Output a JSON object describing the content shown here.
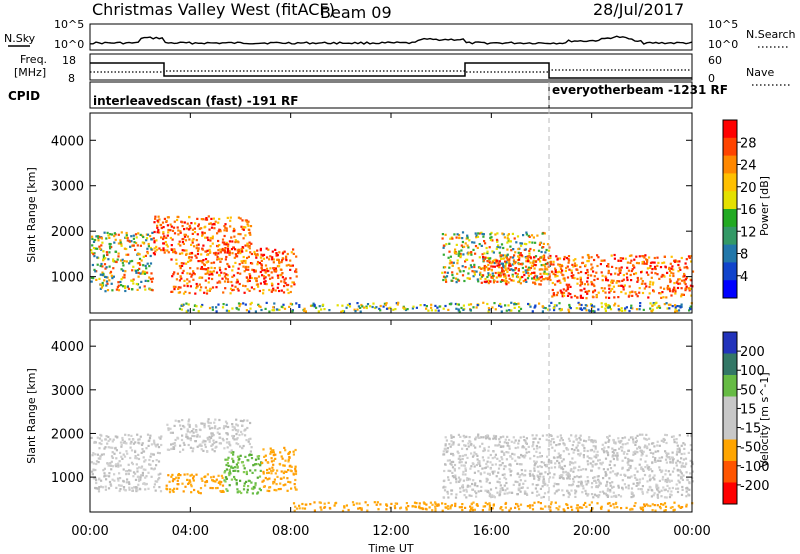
{
  "header": {
    "station": "Christmas Valley West (fitACF)",
    "beam": "Beam 09",
    "date": "28/Jul/2017"
  },
  "strip_labels": {
    "nsky": "N.Sky",
    "nsearch": "N.Search",
    "freq_line1": "Freq.",
    "freq_line2": "[MHz]",
    "nave": "Nave",
    "cpid": "CPID",
    "nsky_tick_hi": "10^5",
    "nsky_tick_lo": "10^0",
    "nsearch_tick_hi": "10^5",
    "nsearch_tick_lo": "10^0",
    "freq_tick_hi": "18",
    "freq_tick_lo": "8",
    "nave_tick_hi": "60",
    "nave_tick_lo": "0"
  },
  "cpid_modes": [
    {
      "label": "interleavedscan (fast) -191 RF",
      "start_hour": 0,
      "end_hour": 18.3
    },
    {
      "label": "everyotherbeam -1231 RF",
      "start_hour": 18.3,
      "end_hour": 24
    }
  ],
  "chart_data": [
    {
      "type": "heatmap",
      "title": "",
      "quantity": "Power",
      "colorbar_label": "Power [dB]",
      "colorbar_ticks": [
        "28",
        "24",
        "20",
        "16",
        "12",
        "8",
        "4"
      ],
      "colorbar_colors": [
        "#ff0000",
        "#ff4400",
        "#ff8800",
        "#ffc000",
        "#e4e000",
        "#22aa22",
        "#339966",
        "#2277aa",
        "#1144cc",
        "#0000ff"
      ],
      "ylabel": "Slant Range [km]",
      "yticks": [
        "4000",
        "3000",
        "2000",
        "1000"
      ],
      "ylim": [
        200,
        4600
      ],
      "xlim_hours": [
        0,
        24
      ],
      "xticks": [
        "00:00",
        "04:00",
        "08:00",
        "12:00",
        "16:00",
        "20:00",
        "00:00"
      ],
      "scatter_regions": [
        {
          "t0": 0.0,
          "t1": 2.5,
          "r0": 700,
          "r1": 2000,
          "level": "medium"
        },
        {
          "t0": 2.5,
          "t1": 6.4,
          "r0": 1500,
          "r1": 2350,
          "level": "high"
        },
        {
          "t0": 3.2,
          "t1": 8.2,
          "r0": 650,
          "r1": 1650,
          "level": "high"
        },
        {
          "t0": 14.0,
          "t1": 18.3,
          "r0": 900,
          "r1": 2000,
          "level": "medium"
        },
        {
          "t0": 15.5,
          "t1": 18.3,
          "r0": 850,
          "r1": 1500,
          "level": "high"
        },
        {
          "t0": 18.3,
          "t1": 24.0,
          "r0": 550,
          "r1": 1500,
          "level": "high"
        },
        {
          "t0": 3.5,
          "t1": 24.0,
          "r0": 250,
          "r1": 450,
          "level": "low"
        }
      ]
    },
    {
      "type": "heatmap",
      "title": "",
      "quantity": "Velocity",
      "colorbar_label": "Velocity [m s^-1]",
      "colorbar_ticks": [
        "200",
        "100",
        "50",
        "15",
        "-15",
        "-50",
        "-100",
        "-200"
      ],
      "colorbar_colors": [
        "#2233bb",
        "#337766",
        "#66bb44",
        "#c8c8c8",
        "#c8c8c8",
        "#ffa500",
        "#ff5500",
        "#ff0000"
      ],
      "ylabel": "Slant Range [km]",
      "yticks": [
        "4000",
        "3000",
        "2000",
        "1000"
      ],
      "ylim": [
        200,
        4600
      ],
      "xlim_hours": [
        0,
        24
      ],
      "xticks": [
        "00:00",
        "04:00",
        "08:00",
        "12:00",
        "16:00",
        "20:00",
        "00:00"
      ],
      "xlabel": "Time UT",
      "scatter_regions": [
        {
          "t0": 0.0,
          "t1": 2.8,
          "r0": 700,
          "r1": 2000,
          "velocity": "grey"
        },
        {
          "t0": 3.0,
          "t1": 6.4,
          "r0": 1600,
          "r1": 2350,
          "velocity": "grey"
        },
        {
          "t0": 3.0,
          "t1": 5.3,
          "r0": 650,
          "r1": 1100,
          "velocity": "orange"
        },
        {
          "t0": 5.3,
          "t1": 6.8,
          "r0": 650,
          "r1": 1600,
          "velocity": "green"
        },
        {
          "t0": 6.8,
          "t1": 8.2,
          "r0": 700,
          "r1": 1700,
          "velocity": "orange"
        },
        {
          "t0": 14.0,
          "t1": 24.0,
          "r0": 550,
          "r1": 2000,
          "velocity": "grey"
        },
        {
          "t0": 8.0,
          "t1": 24.0,
          "r0": 250,
          "r1": 450,
          "velocity": "orange"
        }
      ]
    }
  ]
}
